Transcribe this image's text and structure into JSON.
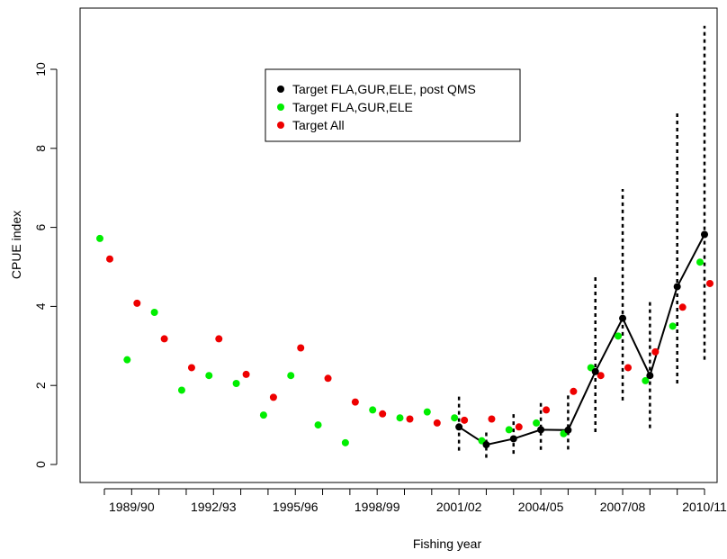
{
  "chart_data": {
    "type": "scatter",
    "title": "",
    "xlabel": "Fishing year",
    "ylabel": "CPUE index",
    "ylim": [
      -0.6,
      11.4
    ],
    "y_ticks": [
      0,
      2,
      4,
      6,
      8,
      10
    ],
    "x_tick_labels": [
      "1989/90",
      "1992/93",
      "1995/96",
      "1998/99",
      "2001/02",
      "2004/05",
      "2007/08",
      "2010/11"
    ],
    "legend_position": "top-center",
    "series": [
      {
        "name": "Target FLA,GUR,ELE, post QMS",
        "color": "#000000",
        "style": "line-points-with-ci",
        "x": [
          14,
          15,
          16,
          17,
          18,
          19,
          20,
          21,
          22,
          23
        ],
        "y": [
          0.95,
          0.5,
          0.65,
          0.88,
          0.87,
          2.35,
          3.7,
          2.25,
          4.5,
          5.82
        ],
        "ci_lower": [
          0.35,
          0.17,
          0.27,
          0.37,
          0.38,
          0.82,
          1.62,
          0.92,
          2.05,
          2.65
        ],
        "ci_upper": [
          1.8,
          0.88,
          1.32,
          1.62,
          1.82,
          4.78,
          6.97,
          4.12,
          8.95,
          11.1
        ]
      },
      {
        "name": "Target FLA,GUR,ELE",
        "color": "#00ee00",
        "style": "points",
        "x": [
          1,
          2,
          3,
          4,
          5,
          6,
          7,
          8,
          9,
          10,
          11,
          12,
          13,
          14,
          15,
          16,
          17,
          18,
          19,
          20,
          21,
          22,
          23
        ],
        "y": [
          5.72,
          2.65,
          3.85,
          1.88,
          2.25,
          2.05,
          1.25,
          2.25,
          1.0,
          0.55,
          1.38,
          1.18,
          1.33,
          1.18,
          0.6,
          0.88,
          1.05,
          0.78,
          2.45,
          3.25,
          2.12,
          3.5,
          5.12
        ]
      },
      {
        "name": "Target All",
        "color": "#ee0000",
        "style": "points",
        "x": [
          1,
          2,
          3,
          4,
          5,
          6,
          7,
          8,
          9,
          10,
          11,
          12,
          13,
          14,
          15,
          16,
          17,
          18,
          19,
          20,
          21,
          22,
          23
        ],
        "y": [
          5.2,
          4.08,
          3.18,
          2.45,
          3.18,
          2.28,
          1.7,
          2.95,
          2.18,
          1.58,
          1.28,
          1.15,
          1.05,
          1.12,
          1.15,
          0.95,
          1.38,
          1.85,
          2.25,
          2.45,
          2.85,
          3.98,
          4.58
        ]
      }
    ]
  }
}
